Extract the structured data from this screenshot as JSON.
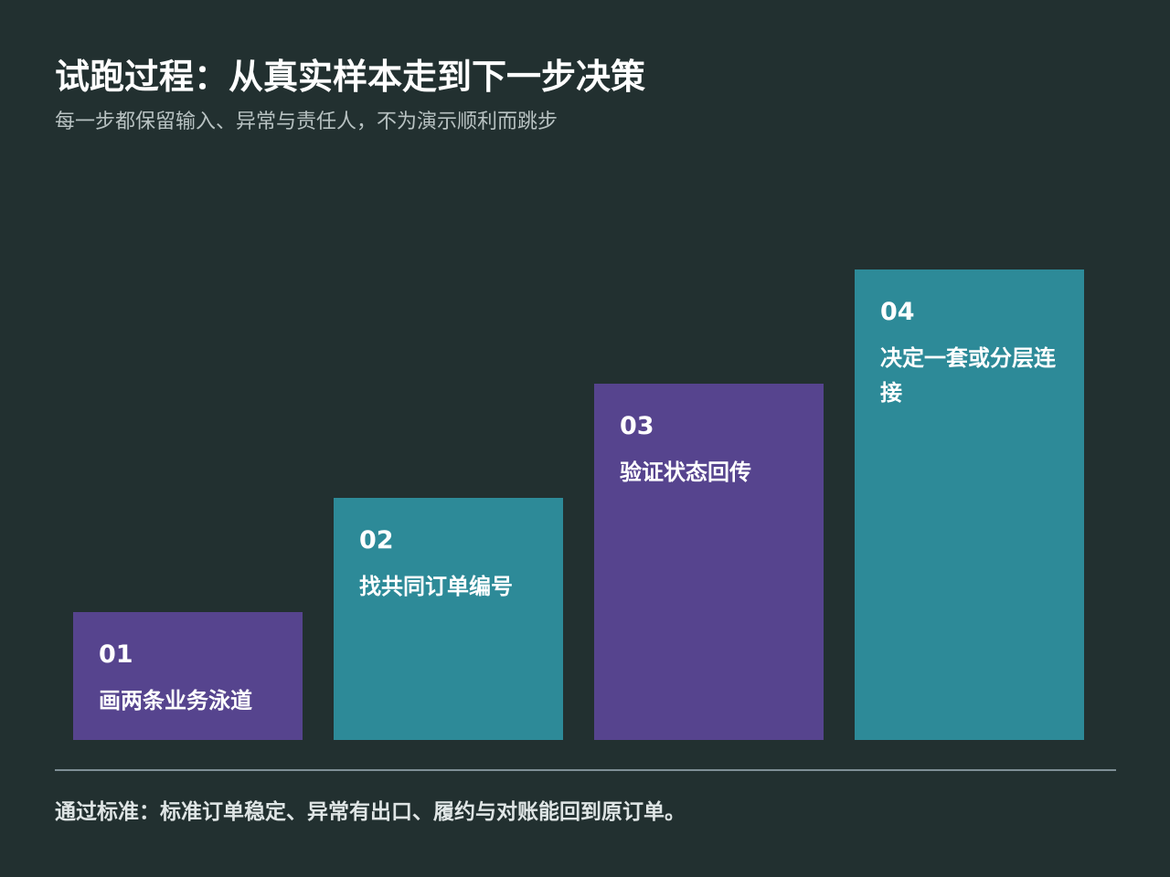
{
  "header": {
    "title": "试跑过程：从真实样本走到下一步决策",
    "subtitle": "每一步都保留输入、异常与责任人，不为演示顺利而跳步"
  },
  "steps": [
    {
      "number": "01",
      "label": "画两条业务泳道",
      "color": "#56448e"
    },
    {
      "number": "02",
      "label": "找共同订单编号",
      "color": "#2d8a98"
    },
    {
      "number": "03",
      "label": "验证状态回传",
      "color": "#56448e"
    },
    {
      "number": "04",
      "label": "决定一套或分层连接",
      "color": "#2d8a98"
    }
  ],
  "footer": {
    "text": "通过标准：标准订单稳定、异常有出口、履约与对账能回到原订单。"
  },
  "colors": {
    "background": "#223030",
    "purple": "#56448e",
    "teal": "#2d8a98",
    "divider": "#7f8f96"
  }
}
